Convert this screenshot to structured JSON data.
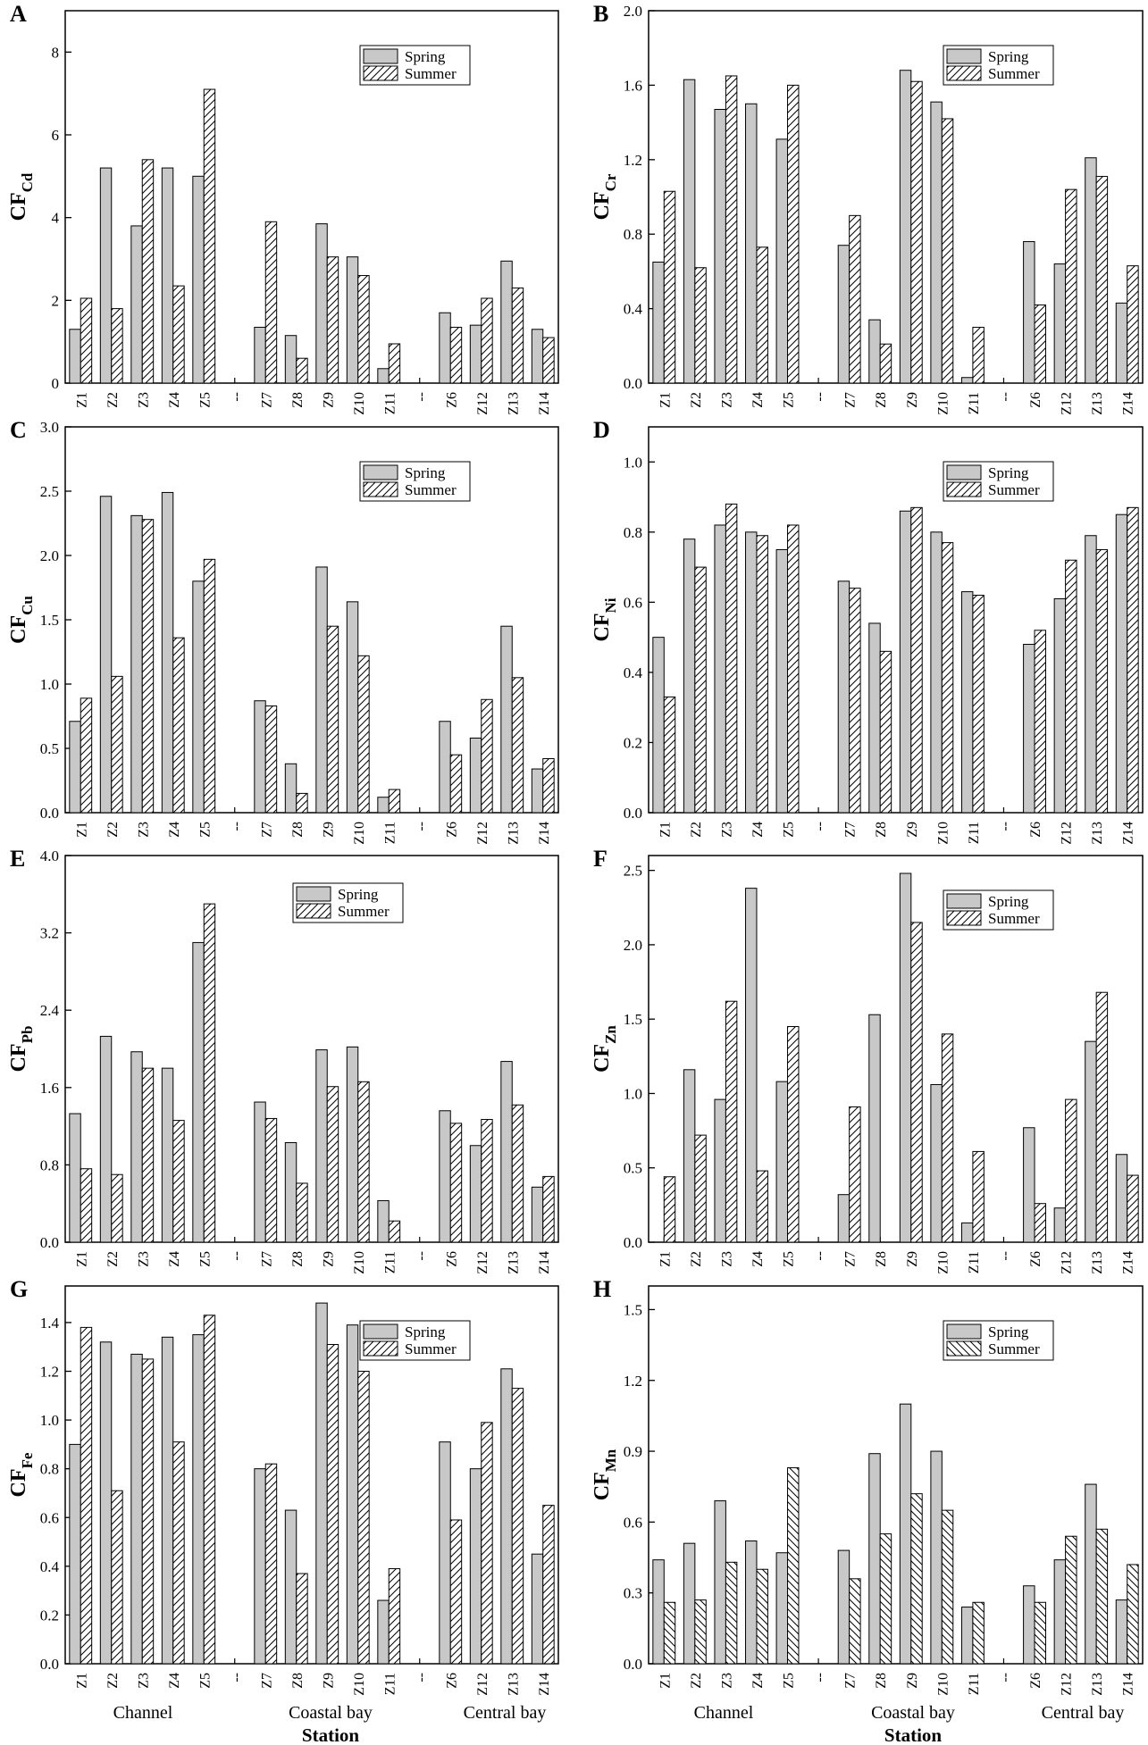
{
  "figure": {
    "x_axis_title": "Station",
    "group_labels": [
      "Channel",
      "Coastal bay",
      "Central bay"
    ],
    "legend": [
      "Spring",
      "Summer"
    ],
    "colors": {
      "spring_fill": "#c8c8c8",
      "summer_fill": "#ffffff",
      "stroke": "#000000"
    }
  },
  "chart_data": [
    {
      "panel": "A",
      "type": "bar",
      "ylabel": "CF",
      "ylabel_sub": "Cd",
      "ylim": [
        0,
        9
      ],
      "yticks": [
        "0",
        "2",
        "4",
        "6",
        "8"
      ],
      "categories": [
        "Z1",
        "Z2",
        "Z3",
        "Z4",
        "Z5",
        "--",
        "Z7",
        "Z8",
        "Z9",
        "Z10",
        "Z11",
        "--",
        "Z6",
        "Z12",
        "Z13",
        "Z14"
      ],
      "series": [
        {
          "name": "Spring",
          "values": [
            1.3,
            5.2,
            3.8,
            5.2,
            5.0,
            null,
            1.35,
            1.15,
            3.85,
            3.05,
            0.35,
            null,
            1.7,
            1.4,
            2.95,
            1.3
          ]
        },
        {
          "name": "Summer",
          "values": [
            2.05,
            1.8,
            5.4,
            2.35,
            7.1,
            null,
            3.9,
            0.6,
            3.05,
            2.6,
            0.95,
            null,
            1.35,
            2.05,
            2.3,
            1.1
          ]
        }
      ],
      "legend_position": "top-right"
    },
    {
      "panel": "B",
      "type": "bar",
      "ylabel": "CF",
      "ylabel_sub": "Cr",
      "ylim": [
        0,
        2.0
      ],
      "yticks": [
        "0.0",
        "0.4",
        "0.8",
        "1.2",
        "1.6",
        "2.0"
      ],
      "categories": [
        "Z1",
        "Z2",
        "Z3",
        "Z4",
        "Z5",
        "--",
        "Z7",
        "Z8",
        "Z9",
        "Z10",
        "Z11",
        "--",
        "Z6",
        "Z12",
        "Z13",
        "Z14"
      ],
      "series": [
        {
          "name": "Spring",
          "values": [
            0.65,
            1.63,
            1.47,
            1.5,
            1.31,
            null,
            0.74,
            0.34,
            1.68,
            1.51,
            0.03,
            null,
            0.76,
            0.64,
            1.21,
            0.43
          ]
        },
        {
          "name": "Summer",
          "values": [
            1.03,
            0.62,
            1.65,
            0.73,
            1.6,
            null,
            0.9,
            0.21,
            1.62,
            1.42,
            0.3,
            null,
            0.42,
            1.04,
            1.11,
            0.63
          ]
        }
      ],
      "legend_position": "top-right"
    },
    {
      "panel": "C",
      "type": "bar",
      "ylabel": "CF",
      "ylabel_sub": "Cu",
      "ylim": [
        0,
        3.0
      ],
      "yticks": [
        "0.0",
        "0.5",
        "1.0",
        "1.5",
        "2.0",
        "2.5",
        "3.0"
      ],
      "categories": [
        "Z1",
        "Z2",
        "Z3",
        "Z4",
        "Z5",
        "--",
        "Z7",
        "Z8",
        "Z9",
        "Z10",
        "Z11",
        "--",
        "Z6",
        "Z12",
        "Z13",
        "Z14"
      ],
      "series": [
        {
          "name": "Spring",
          "values": [
            0.71,
            2.46,
            2.31,
            2.49,
            1.8,
            null,
            0.87,
            0.38,
            1.91,
            1.64,
            0.12,
            null,
            0.71,
            0.58,
            1.45,
            0.34
          ]
        },
        {
          "name": "Summer",
          "values": [
            0.89,
            1.06,
            2.28,
            1.36,
            1.97,
            null,
            0.83,
            0.15,
            1.45,
            1.22,
            0.18,
            null,
            0.45,
            0.88,
            1.05,
            0.42
          ]
        }
      ],
      "legend_position": "top-right"
    },
    {
      "panel": "D",
      "type": "bar",
      "ylabel": "CF",
      "ylabel_sub": "Ni",
      "ylim": [
        0,
        1.1
      ],
      "yticks": [
        "0.0",
        "0.2",
        "0.4",
        "0.6",
        "0.8",
        "1.0"
      ],
      "categories": [
        "Z1",
        "Z2",
        "Z3",
        "Z4",
        "Z5",
        "--",
        "Z7",
        "Z8",
        "Z9",
        "Z10",
        "Z11",
        "--",
        "Z6",
        "Z12",
        "Z13",
        "Z14"
      ],
      "series": [
        {
          "name": "Spring",
          "values": [
            0.5,
            0.78,
            0.82,
            0.8,
            0.75,
            null,
            0.66,
            0.54,
            0.86,
            0.8,
            0.63,
            null,
            0.48,
            0.61,
            0.79,
            0.85
          ]
        },
        {
          "name": "Summer",
          "values": [
            0.33,
            0.7,
            0.88,
            0.79,
            0.82,
            null,
            0.64,
            0.46,
            0.87,
            0.77,
            0.62,
            null,
            0.52,
            0.72,
            0.75,
            0.87
          ]
        }
      ],
      "legend_position": "top-right"
    },
    {
      "panel": "E",
      "type": "bar",
      "ylabel": "CF",
      "ylabel_sub": "Pb",
      "ylim": [
        0,
        4.0
      ],
      "yticks": [
        "0.0",
        "0.8",
        "1.6",
        "2.4",
        "3.2",
        "4.0"
      ],
      "categories": [
        "Z1",
        "Z2",
        "Z3",
        "Z4",
        "Z5",
        "--",
        "Z7",
        "Z8",
        "Z9",
        "Z10",
        "Z11",
        "--",
        "Z6",
        "Z12",
        "Z13",
        "Z14"
      ],
      "series": [
        {
          "name": "Spring",
          "values": [
            1.33,
            2.13,
            1.97,
            1.8,
            3.1,
            null,
            1.45,
            1.03,
            1.99,
            2.02,
            0.43,
            null,
            1.36,
            1.0,
            1.87,
            0.57
          ]
        },
        {
          "name": "Summer",
          "values": [
            0.76,
            0.7,
            1.8,
            1.26,
            3.5,
            null,
            1.28,
            0.61,
            1.61,
            1.66,
            0.22,
            null,
            1.23,
            1.27,
            1.42,
            0.68
          ]
        }
      ],
      "legend_position": "top-center"
    },
    {
      "panel": "F",
      "type": "bar",
      "ylabel": "CF",
      "ylabel_sub": "Zn",
      "ylim": [
        0,
        2.6
      ],
      "yticks": [
        "0.0",
        "0.5",
        "1.0",
        "1.5",
        "2.0",
        "2.5"
      ],
      "categories": [
        "Z1",
        "Z2",
        "Z3",
        "Z4",
        "Z5",
        "--",
        "Z7",
        "Z8",
        "Z9",
        "Z10",
        "Z11",
        "--",
        "Z6",
        "Z12",
        "Z13",
        "Z14"
      ],
      "series": [
        {
          "name": "Spring",
          "values": [
            null,
            1.16,
            0.96,
            2.38,
            1.08,
            null,
            0.32,
            1.53,
            2.48,
            1.06,
            0.13,
            null,
            0.77,
            0.23,
            1.35,
            0.59
          ]
        },
        {
          "name": "Summer",
          "values": [
            0.44,
            0.72,
            1.62,
            0.48,
            1.45,
            null,
            0.91,
            null,
            2.15,
            1.4,
            0.61,
            null,
            0.26,
            0.96,
            1.68,
            0.45
          ]
        }
      ],
      "legend_position": "top-right"
    },
    {
      "panel": "G",
      "type": "bar",
      "ylabel": "CF",
      "ylabel_sub": "Fe",
      "ylim": [
        0,
        1.55
      ],
      "yticks": [
        "0.0",
        "0.2",
        "0.4",
        "0.6",
        "0.8",
        "1.0",
        "1.2",
        "1.4"
      ],
      "categories": [
        "Z1",
        "Z2",
        "Z3",
        "Z4",
        "Z5",
        "--",
        "Z7",
        "Z8",
        "Z9",
        "Z10",
        "Z11",
        "--",
        "Z6",
        "Z12",
        "Z13",
        "Z14"
      ],
      "series": [
        {
          "name": "Spring",
          "values": [
            0.9,
            1.32,
            1.27,
            1.34,
            1.35,
            null,
            0.8,
            0.63,
            1.48,
            1.39,
            0.26,
            null,
            0.91,
            0.8,
            1.21,
            0.45
          ]
        },
        {
          "name": "Summer",
          "values": [
            1.38,
            0.71,
            1.25,
            0.91,
            1.43,
            null,
            0.82,
            0.37,
            1.31,
            1.2,
            0.39,
            null,
            0.59,
            0.99,
            1.13,
            0.65
          ]
        }
      ],
      "legend_position": "top-right"
    },
    {
      "panel": "H",
      "type": "bar",
      "ylabel": "CF",
      "ylabel_sub": "Mn",
      "ylim": [
        0,
        1.6
      ],
      "yticks": [
        "0.0",
        "0.3",
        "0.6",
        "0.9",
        "1.2",
        "1.5"
      ],
      "categories": [
        "Z1",
        "Z2",
        "Z3",
        "Z4",
        "Z5",
        "--",
        "Z7",
        "Z8",
        "Z9",
        "Z10",
        "Z11",
        "--",
        "Z6",
        "Z12",
        "Z13",
        "Z14"
      ],
      "series": [
        {
          "name": "Spring",
          "values": [
            0.44,
            0.51,
            0.69,
            0.52,
            0.47,
            null,
            0.48,
            0.89,
            1.1,
            0.9,
            0.24,
            null,
            0.33,
            0.44,
            0.76,
            0.27
          ]
        },
        {
          "name": "Summer",
          "values": [
            0.26,
            0.27,
            0.43,
            0.4,
            0.83,
            null,
            0.36,
            0.55,
            0.72,
            0.65,
            0.26,
            null,
            0.26,
            0.54,
            0.57,
            0.42
          ]
        }
      ],
      "legend_position": "top-right"
    }
  ]
}
